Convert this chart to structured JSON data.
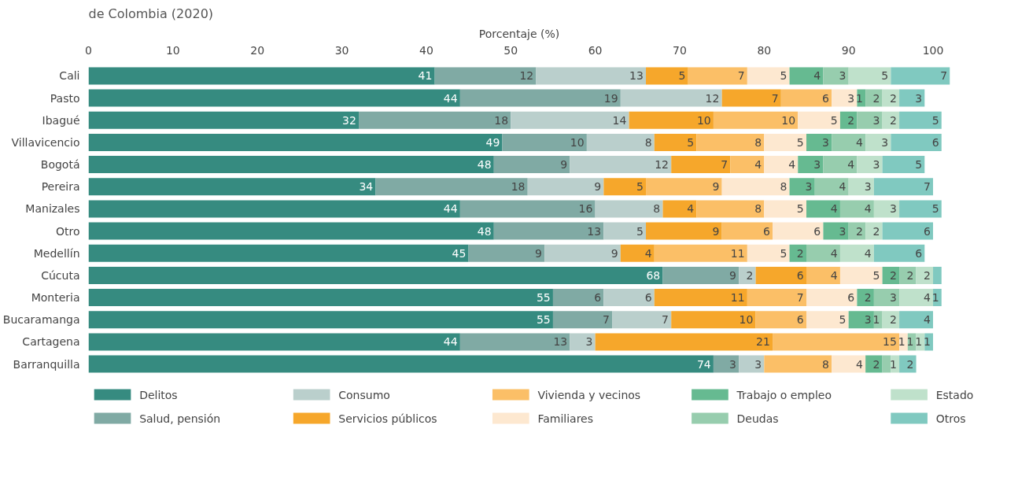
{
  "chart_data": {
    "type": "bar",
    "orientation": "horizontal",
    "stacked": true,
    "title": "de Colombia (2020)",
    "xlabel": "Porcentaje (%)",
    "categories": [
      "Cali",
      "Pasto",
      "Ibagué",
      "Villavicencio",
      "Bogotá",
      "Pereira",
      "Manizales",
      "Otro",
      "Medellín",
      "Cúcuta",
      "Monteria",
      "Bucaramanga",
      "Cartagena",
      "Barranquilla"
    ],
    "xlim": [
      0,
      102
    ],
    "xticks": [
      0,
      10,
      20,
      30,
      40,
      50,
      60,
      70,
      80,
      90,
      100
    ],
    "grid": false,
    "legend": "bottom",
    "series": [
      {
        "name": "Delitos",
        "color": "#368b80",
        "values": [
          41,
          44,
          32,
          49,
          48,
          34,
          44,
          48,
          45,
          68,
          55,
          55,
          44,
          74
        ],
        "value_labels": [
          "41",
          "44",
          "32",
          "49",
          "48",
          "34",
          "44",
          "48",
          "45",
          "68",
          "55",
          "55",
          "44",
          "74"
        ]
      },
      {
        "name": "Salud, pensión",
        "color": "#80aaa4",
        "values": [
          12,
          19,
          18,
          10,
          9,
          18,
          16,
          13,
          9,
          9,
          6,
          7,
          13,
          3
        ],
        "value_labels": [
          "12",
          "19",
          "18",
          "10",
          "9",
          "18",
          "16",
          "13",
          "9",
          "9",
          "6",
          "7",
          "13",
          "3"
        ]
      },
      {
        "name": "Consumo",
        "color": "#bacfcc",
        "values": [
          13,
          12,
          14,
          8,
          12,
          9,
          8,
          5,
          9,
          2,
          6,
          7,
          3,
          3
        ],
        "value_labels": [
          "13",
          "12",
          "14",
          "8",
          "12",
          "9",
          "8",
          "5",
          "9",
          "2",
          "6",
          "7",
          "3",
          "3"
        ]
      },
      {
        "name": "Servicios públicos",
        "color": "#f6a72b",
        "values": [
          5,
          7,
          10,
          5,
          7,
          5,
          4,
          9,
          4,
          6,
          11,
          10,
          21,
          0
        ],
        "value_labels": [
          "5",
          "7",
          "10",
          "5",
          "7",
          "5",
          "4",
          "9",
          "4",
          "6",
          "11",
          "10",
          "21",
          null
        ]
      },
      {
        "name": "Vivienda y vecinos",
        "color": "#fbbf67",
        "values": [
          7,
          6,
          10,
          8,
          4,
          9,
          8,
          6,
          11,
          4,
          7,
          6,
          15,
          8
        ],
        "value_labels": [
          "7",
          "6",
          "10",
          "8",
          "4",
          "9",
          "8",
          "6",
          "11",
          "4",
          "7",
          "6",
          "15",
          "8"
        ]
      },
      {
        "name": "Familiares",
        "color": "#fde8d0",
        "values": [
          5,
          3,
          5,
          5,
          4,
          8,
          5,
          6,
          5,
          5,
          6,
          5,
          1,
          4
        ],
        "value_labels": [
          "5",
          "3",
          "5",
          "5",
          "4",
          "8",
          "5",
          "6",
          "5",
          "5",
          "6",
          "5",
          "1",
          "4"
        ]
      },
      {
        "name": "Trabajo o empleo",
        "color": "#66ba91",
        "values": [
          4,
          1,
          2,
          3,
          3,
          3,
          4,
          3,
          2,
          2,
          2,
          3,
          0,
          2
        ],
        "value_labels": [
          "4",
          "1",
          "2",
          "3",
          "3",
          "3",
          "4",
          "3",
          "2",
          "2",
          "2",
          "3",
          null,
          "2"
        ]
      },
      {
        "name": "Deudas",
        "color": "#97cdae",
        "values": [
          3,
          2,
          3,
          4,
          4,
          4,
          4,
          2,
          4,
          2,
          3,
          1,
          1,
          1
        ],
        "value_labels": [
          "3",
          "2",
          "3",
          "4",
          "4",
          "4",
          "4",
          "2",
          "4",
          "2",
          "3",
          "1",
          "1",
          null
        ]
      },
      {
        "name": "Estado",
        "color": "#bfe1cb",
        "values": [
          5,
          2,
          2,
          3,
          3,
          3,
          3,
          2,
          4,
          2,
          4,
          2,
          1,
          1
        ],
        "value_labels": [
          "5",
          "2",
          "2",
          "3",
          "3",
          "3",
          "3",
          "2",
          "4",
          "2",
          "4",
          "2",
          "1",
          "1"
        ]
      },
      {
        "name": "Otros",
        "color": "#80c9c0",
        "values": [
          7,
          3,
          5,
          6,
          5,
          7,
          5,
          6,
          6,
          1,
          1,
          4,
          1,
          2
        ],
        "value_labels": [
          "7",
          "3",
          "5",
          "6",
          "5",
          "7",
          "5",
          "6",
          "6",
          null,
          "1",
          "4",
          "1",
          "2"
        ]
      }
    ]
  }
}
